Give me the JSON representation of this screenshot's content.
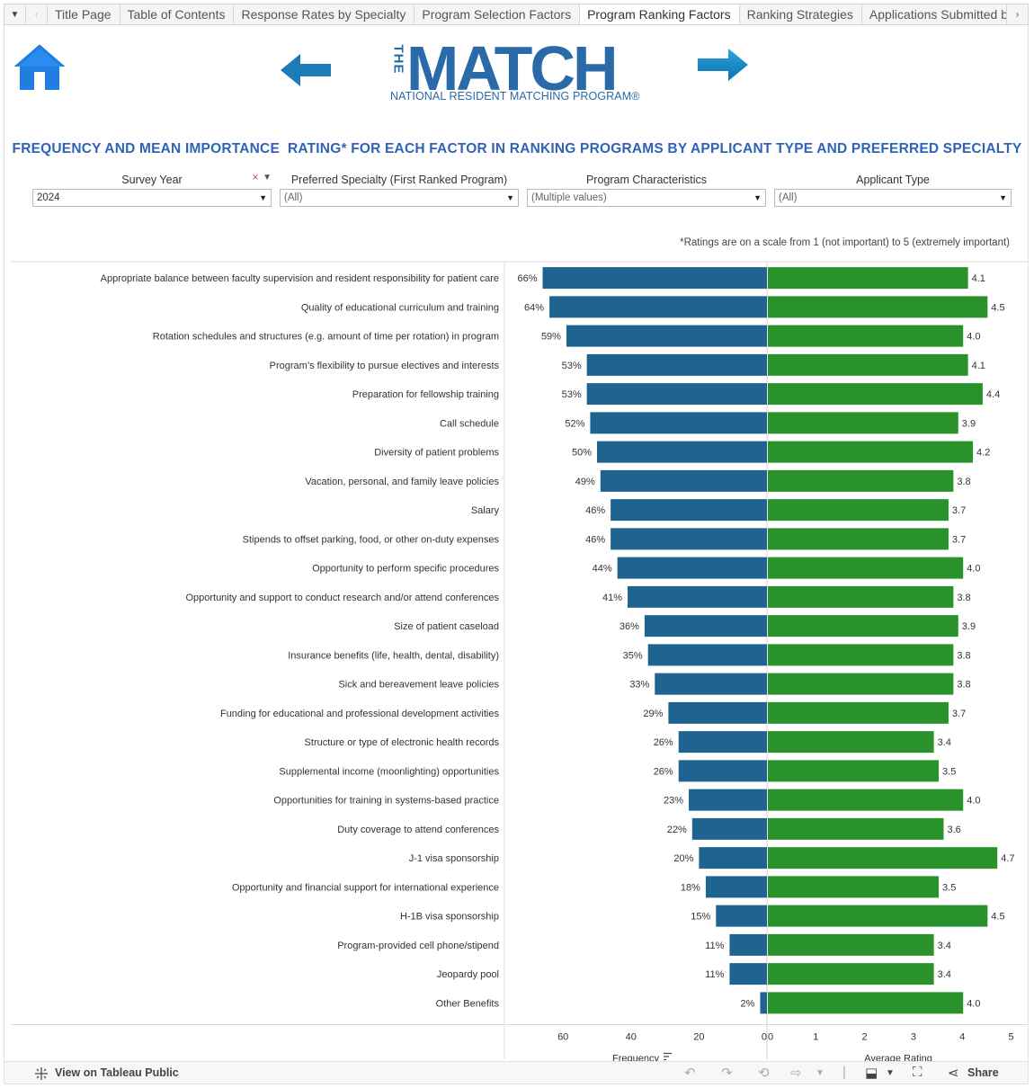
{
  "tabbar": {
    "menu_icon": "menu-caret-icon",
    "prev_icon": "chevron-left-icon",
    "next_icon": "chevron-right-icon",
    "tabs": [
      {
        "label": "Title Page",
        "active": false
      },
      {
        "label": "Table of Contents",
        "active": false
      },
      {
        "label": "Response Rates by Specialty",
        "active": false
      },
      {
        "label": "Program Selection Factors",
        "active": false
      },
      {
        "label": "Program Ranking Factors",
        "active": true
      },
      {
        "label": "Ranking Strategies",
        "active": false
      },
      {
        "label": "Applications Submitted by",
        "active": false
      }
    ]
  },
  "header": {
    "home_icon": "home-icon",
    "back_icon": "arrow-left-icon",
    "forward_icon": "arrow-right-icon",
    "logo_the": "THE",
    "logo_main": "MATCH",
    "logo_sub": "NATIONAL RESIDENT MATCHING PROGRAM®",
    "title": "FREQUENCY AND MEAN IMPORTANCE  RATING* FOR EACH FACTOR IN RANKING PROGRAMS BY APPLICANT TYPE AND PREFERRED SPECIALTY",
    "title_color": "#2f63b8"
  },
  "filters": [
    {
      "label": "Survey Year",
      "value": "2024",
      "has_filter_icon": true
    },
    {
      "label": "Preferred Specialty (First Ranked Program)",
      "value": "(All)"
    },
    {
      "label": "Program Characteristics",
      "value": "(Multiple values)"
    },
    {
      "label": "Applicant Type",
      "value": "(All)"
    }
  ],
  "note": "*Ratings are on a scale from 1 (not important) to 5 (extremely important)",
  "chart_data": {
    "type": "bar",
    "orientation": "horizontal",
    "categories": [
      "Appropriate balance between faculty supervision and resident responsibility for patient care",
      "Quality of educational curriculum and training",
      "Rotation schedules and structures (e.g. amount of time per rotation) in program",
      "Program’s flexibility to pursue electives and interests",
      "Preparation for fellowship training",
      "Call schedule",
      "Diversity of patient problems",
      "Vacation, personal, and family leave policies",
      "Salary",
      "Stipends to offset parking, food, or other on-duty expenses",
      "Opportunity to perform specific procedures",
      "Opportunity and support to conduct research and/or attend conferences",
      "Size of patient caseload",
      "Insurance benefits (life, health, dental, disability)",
      "Sick and bereavement leave policies",
      "Funding for educational and professional development activities",
      "Structure or type of electronic health records",
      "Supplemental income (moonlighting) opportunities",
      "Opportunities for training in systems-based practice",
      "Duty coverage to attend conferences",
      "J-1 visa sponsorship",
      "Opportunity and financial support for international experience",
      "H-1B visa sponsorship",
      "Program-provided cell phone/stipend",
      "Jeopardy pool",
      "Other Benefits"
    ],
    "series": [
      {
        "name": "Frequency",
        "color": "#1f6491",
        "labels": [
          "66%",
          "64%",
          "59%",
          "53%",
          "53%",
          "52%",
          "50%",
          "49%",
          "46%",
          "46%",
          "44%",
          "41%",
          "36%",
          "35%",
          "33%",
          "29%",
          "26%",
          "26%",
          "23%",
          "22%",
          "20%",
          "18%",
          "15%",
          "11%",
          "11%",
          "2%"
        ],
        "values": [
          66,
          64,
          59,
          53,
          53,
          52,
          50,
          49,
          46,
          46,
          44,
          41,
          36,
          35,
          33,
          29,
          26,
          26,
          23,
          22,
          20,
          18,
          15,
          11,
          11,
          2
        ],
        "axis_ticks": [
          "60",
          "40",
          "20",
          "0"
        ],
        "xlim": [
          66,
          0
        ],
        "xlabel": "Frequency"
      },
      {
        "name": "Average Rating",
        "color": "#2a922a",
        "labels": [
          "4.1",
          "4.5",
          "4.0",
          "4.1",
          "4.4",
          "3.9",
          "4.2",
          "3.8",
          "3.7",
          "3.7",
          "4.0",
          "3.8",
          "3.9",
          "3.8",
          "3.8",
          "3.7",
          "3.4",
          "3.5",
          "4.0",
          "3.6",
          "4.7",
          "3.5",
          "4.5",
          "3.4",
          "3.4",
          "4.0"
        ],
        "values": [
          4.1,
          4.5,
          4.0,
          4.1,
          4.4,
          3.9,
          4.2,
          3.8,
          3.7,
          3.7,
          4.0,
          3.8,
          3.9,
          3.8,
          3.8,
          3.7,
          3.4,
          3.5,
          4.0,
          3.6,
          4.7,
          3.5,
          4.5,
          3.4,
          3.4,
          4.0
        ],
        "axis_ticks": [
          "0",
          "1",
          "2",
          "3",
          "4",
          "5"
        ],
        "xlim": [
          0,
          5
        ],
        "xlabel": "Average Rating"
      }
    ],
    "grid": false,
    "sort_icon": "sort-descending-icon"
  },
  "toolbar": {
    "tableau_icon": "tableau-icon",
    "link_label": "View on Tableau Public",
    "share_label": "Share",
    "icons": [
      "undo-icon",
      "redo-icon",
      "revert-icon",
      "refresh-icon",
      "pause-icon",
      "download-icon",
      "fullscreen-icon",
      "share-icon"
    ]
  }
}
